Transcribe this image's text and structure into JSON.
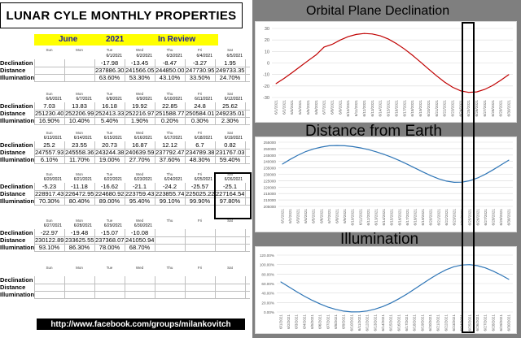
{
  "banner": {
    "title": "LUNAR CYLE MONTHLY PROPERTIES"
  },
  "header": {
    "month": "June",
    "year": "2021",
    "status": "In Review"
  },
  "row_labels": [
    "Declination",
    "Distance",
    "Illumination"
  ],
  "day_names": [
    "Sun",
    "Mon",
    "Tue",
    "Wed",
    "Thu",
    "Fri",
    "Sat"
  ],
  "weeks": [
    {
      "dates": [
        "",
        "",
        "6/1/2021",
        "6/2/2021",
        "6/3/2021",
        "6/4/2021",
        "6/5/2021"
      ],
      "declination": [
        "",
        "",
        "-17.98",
        "-13.45",
        "-8.47",
        "-3.27",
        "1.95"
      ],
      "distance": [
        "",
        "",
        "237886.30",
        "241566.05",
        "244850.00",
        "247730.95",
        "249733.35"
      ],
      "illumination": [
        "",
        "",
        "63.60%",
        "53.30%",
        "43.10%",
        "33.50%",
        "24.70%"
      ]
    },
    {
      "dates": [
        "6/6/2021",
        "6/7/2021",
        "6/8/2021",
        "6/9/2021",
        "6/10/2021",
        "6/11/2021",
        "6/12/2021"
      ],
      "declination": [
        "7.03",
        "13.83",
        "16.18",
        "19.92",
        "22.85",
        "24.8",
        "25.62"
      ],
      "distance": [
        "251230.40",
        "252206.99",
        "252413.33",
        "252216.97",
        "251588.77",
        "250584.01",
        "249235.01"
      ],
      "illumination": [
        "16.90%",
        "10.40%",
        "5.40%",
        "1.90%",
        "0.20%",
        "0.30%",
        "2.30%"
      ]
    },
    {
      "dates": [
        "6/13/2021",
        "6/14/2021",
        "6/15/2021",
        "6/16/2021",
        "6/17/2021",
        "6/18/2021",
        "6/19/2021"
      ],
      "declination": [
        "25.2",
        "23.55",
        "20.73",
        "16.87",
        "12.12",
        "6.7",
        "0.82"
      ],
      "distance": [
        "247557.93",
        "245558.36",
        "243244.38",
        "240639.59",
        "237792.47",
        "234789.38",
        "231767.03"
      ],
      "illumination": [
        "6.10%",
        "11.70%",
        "19.00%",
        "27.70%",
        "37.60%",
        "48.30%",
        "59.40%"
      ]
    },
    {
      "dates": [
        "6/20/2021",
        "6/21/2021",
        "6/22/2021",
        "6/23/2021",
        "6/24/2021",
        "6/25/2021",
        "6/26/2021"
      ],
      "declination": [
        "-5.23",
        "-11.18",
        "-16.62",
        "-21.1",
        "-24.2",
        "-25.57",
        "-25.1"
      ],
      "distance": [
        "228917.43",
        "226472.95",
        "224680.92",
        "223759.43",
        "223855.74",
        "225025.22",
        "227164.54"
      ],
      "illumination": [
        "70.30%",
        "80.40%",
        "89.00%",
        "95.40%",
        "99.10%",
        "99.90%",
        "97.80%"
      ]
    },
    {
      "dates": [
        "6/27/2021",
        "6/28/2021",
        "6/29/2021",
        "6/30/2021",
        "",
        "",
        ""
      ],
      "declination": [
        "-22.97",
        "-19.48",
        "-15.07",
        "-10.08",
        "",
        "",
        ""
      ],
      "distance": [
        "230122.89",
        "233625.55",
        "237368.07",
        "241050.94",
        "",
        "",
        ""
      ],
      "illumination": [
        "93.10%",
        "86.30%",
        "78.00%",
        "68.70%",
        "",
        "",
        ""
      ]
    },
    {
      "dates": [
        "",
        "",
        "",
        "",
        "",
        "",
        ""
      ],
      "declination": [
        "",
        "",
        "",
        "",
        "",
        "",
        ""
      ],
      "distance": [
        "",
        "",
        "",
        "",
        "",
        "",
        ""
      ],
      "illumination": [
        "",
        "",
        "",
        "",
        "",
        "",
        ""
      ]
    }
  ],
  "footer": {
    "url": "http://www.facebook.com/groups/milankovitch"
  },
  "chart_data": [
    {
      "type": "line",
      "title": "Orbital Plane Declination",
      "x": [
        "6/1/2021",
        "6/2/2021",
        "6/3/2021",
        "6/4/2021",
        "6/5/2021",
        "6/6/2021",
        "6/7/2021",
        "6/8/2021",
        "6/9/2021",
        "6/10/2021",
        "6/11/2021",
        "6/12/2021",
        "6/13/2021",
        "6/14/2021",
        "6/15/2021",
        "6/16/2021",
        "6/17/2021",
        "6/18/2021",
        "6/19/2021",
        "6/20/2021",
        "6/21/2021",
        "6/22/2021",
        "6/23/2021",
        "6/24/2021",
        "6/25/2021",
        "6/26/2021",
        "6/27/2021",
        "6/28/2021",
        "6/29/2021",
        "6/30/2021"
      ],
      "series": [
        {
          "values": [
            -17.98,
            -13.45,
            -8.47,
            -3.27,
            1.95,
            7.03,
            13.83,
            16.18,
            19.92,
            22.85,
            24.8,
            25.62,
            25.2,
            23.55,
            20.73,
            16.87,
            12.12,
            6.7,
            0.82,
            -5.23,
            -11.18,
            -16.62,
            -21.1,
            -24.2,
            -25.57,
            -25.1,
            -22.97,
            -19.48,
            -15.07,
            -10.08
          ],
          "color": "#c00000"
        }
      ],
      "ylim": [
        -30,
        30
      ],
      "yticks": [
        "30",
        "20",
        "10",
        "0",
        "-10",
        "-20",
        "-30"
      ],
      "grid": true
    },
    {
      "type": "line",
      "title": "Distance from Earth",
      "x": [
        "6/1/2021",
        "6/2/2021",
        "6/3/2021",
        "6/4/2021",
        "6/5/2021",
        "6/6/2021",
        "6/7/2021",
        "6/8/2021",
        "6/9/2021",
        "6/10/2021",
        "6/11/2021",
        "6/12/2021",
        "6/13/2021",
        "6/14/2021",
        "6/15/2021",
        "6/16/2021",
        "6/17/2021",
        "6/18/2021",
        "6/19/2021",
        "6/20/2021",
        "6/21/2021",
        "6/22/2021",
        "6/23/2021",
        "6/24/2021",
        "6/25/2021",
        "6/26/2021",
        "6/27/2021",
        "6/28/2021",
        "6/29/2021",
        "6/30/2021"
      ],
      "series": [
        {
          "values": [
            237886.3,
            241566.05,
            244850,
            247730.95,
            249733.35,
            251230.4,
            252206.99,
            252413.33,
            252216.97,
            251588.77,
            250584.01,
            249235.01,
            247557.93,
            245558.36,
            243244.38,
            240639.59,
            237792.47,
            234789.38,
            231767.03,
            228917.43,
            226472.95,
            224680.92,
            223759.43,
            223855.74,
            225025.22,
            227164.54,
            230122.89,
            233625.55,
            237368.07,
            241050.94
          ],
          "color": "#2e75b6"
        }
      ],
      "ylim": [
        205000,
        255000
      ],
      "yticks": [
        "255000",
        "250000",
        "245000",
        "240000",
        "235000",
        "230000",
        "225000",
        "220000",
        "215000",
        "210000",
        "205000"
      ],
      "grid": true
    },
    {
      "type": "line",
      "title": "Illumination",
      "x": [
        "6/1/2021",
        "6/2/2021",
        "6/3/2021",
        "6/4/2021",
        "6/5/2021",
        "6/6/2021",
        "6/7/2021",
        "6/8/2021",
        "6/9/2021",
        "6/10/2021",
        "6/11/2021",
        "6/12/2021",
        "6/13/2021",
        "6/14/2021",
        "6/15/2021",
        "6/16/2021",
        "6/17/2021",
        "6/18/2021",
        "6/19/2021",
        "6/20/2021",
        "6/21/2021",
        "6/22/2021",
        "6/23/2021",
        "6/24/2021",
        "6/25/2021",
        "6/26/2021",
        "6/27/2021",
        "6/28/2021",
        "6/29/2021",
        "6/30/2021"
      ],
      "series": [
        {
          "values": [
            63.6,
            53.3,
            43.1,
            33.5,
            24.7,
            16.9,
            10.4,
            5.4,
            1.9,
            0.2,
            0.3,
            2.3,
            6.1,
            11.7,
            19,
            27.7,
            37.6,
            48.3,
            59.4,
            70.3,
            80.4,
            89,
            95.4,
            99.1,
            99.9,
            97.8,
            93.1,
            86.3,
            78,
            68.7
          ],
          "color": "#2e75b6"
        }
      ],
      "ylim": [
        0,
        120
      ],
      "yticks": [
        "120.00%",
        "100.00%",
        "80.00%",
        "60.00%",
        "40.00%",
        "20.00%",
        "0.00%"
      ],
      "grid": true
    }
  ]
}
